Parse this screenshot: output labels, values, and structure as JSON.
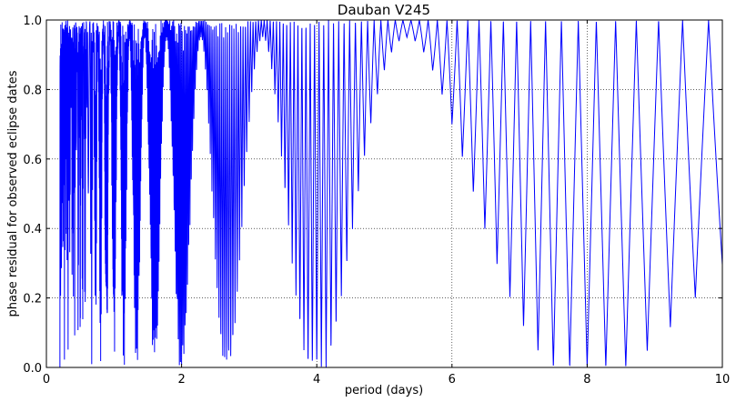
{
  "chart_data": {
    "type": "line",
    "title": "Dauban V245",
    "xlabel": "period (days)",
    "ylabel": "phase residual for observed eclipse dates",
    "xlim": [
      0,
      10
    ],
    "ylim": [
      0.0,
      1.0
    ],
    "xticks": [
      0,
      2,
      4,
      6,
      8,
      10
    ],
    "xtick_labels": [
      "0",
      "2",
      "4",
      "6",
      "8",
      "10"
    ],
    "yticks": [
      0.0,
      0.2,
      0.4,
      0.6,
      0.8,
      1.0
    ],
    "ytick_labels": [
      "0.0",
      "0.2",
      "0.4",
      "0.6",
      "0.8",
      "1.0"
    ],
    "grid": true,
    "grid_style": "dotted",
    "legend": "none",
    "line_color": "#0000ff",
    "series": [
      {
        "x_range": [
          0.2,
          10.0
        ],
        "description_of_shape": "rapidly oscillating phase residual between 0 and 1 with beat envelope; oscillation frequency decreases with period",
        "envelope_minima_x": [
          1.0,
          1.35,
          1.6,
          2.0,
          2.65,
          4.0,
          8.0
        ],
        "envelope_minima_y": [
          0.0,
          0.01,
          0.02,
          0.02,
          0.09,
          0.01,
          0.0
        ],
        "envelope_maxima_x": [
          2.3,
          3.2,
          5.3
        ],
        "envelope_maxima_y": [
          1.0,
          1.0,
          1.0
        ]
      }
    ]
  }
}
